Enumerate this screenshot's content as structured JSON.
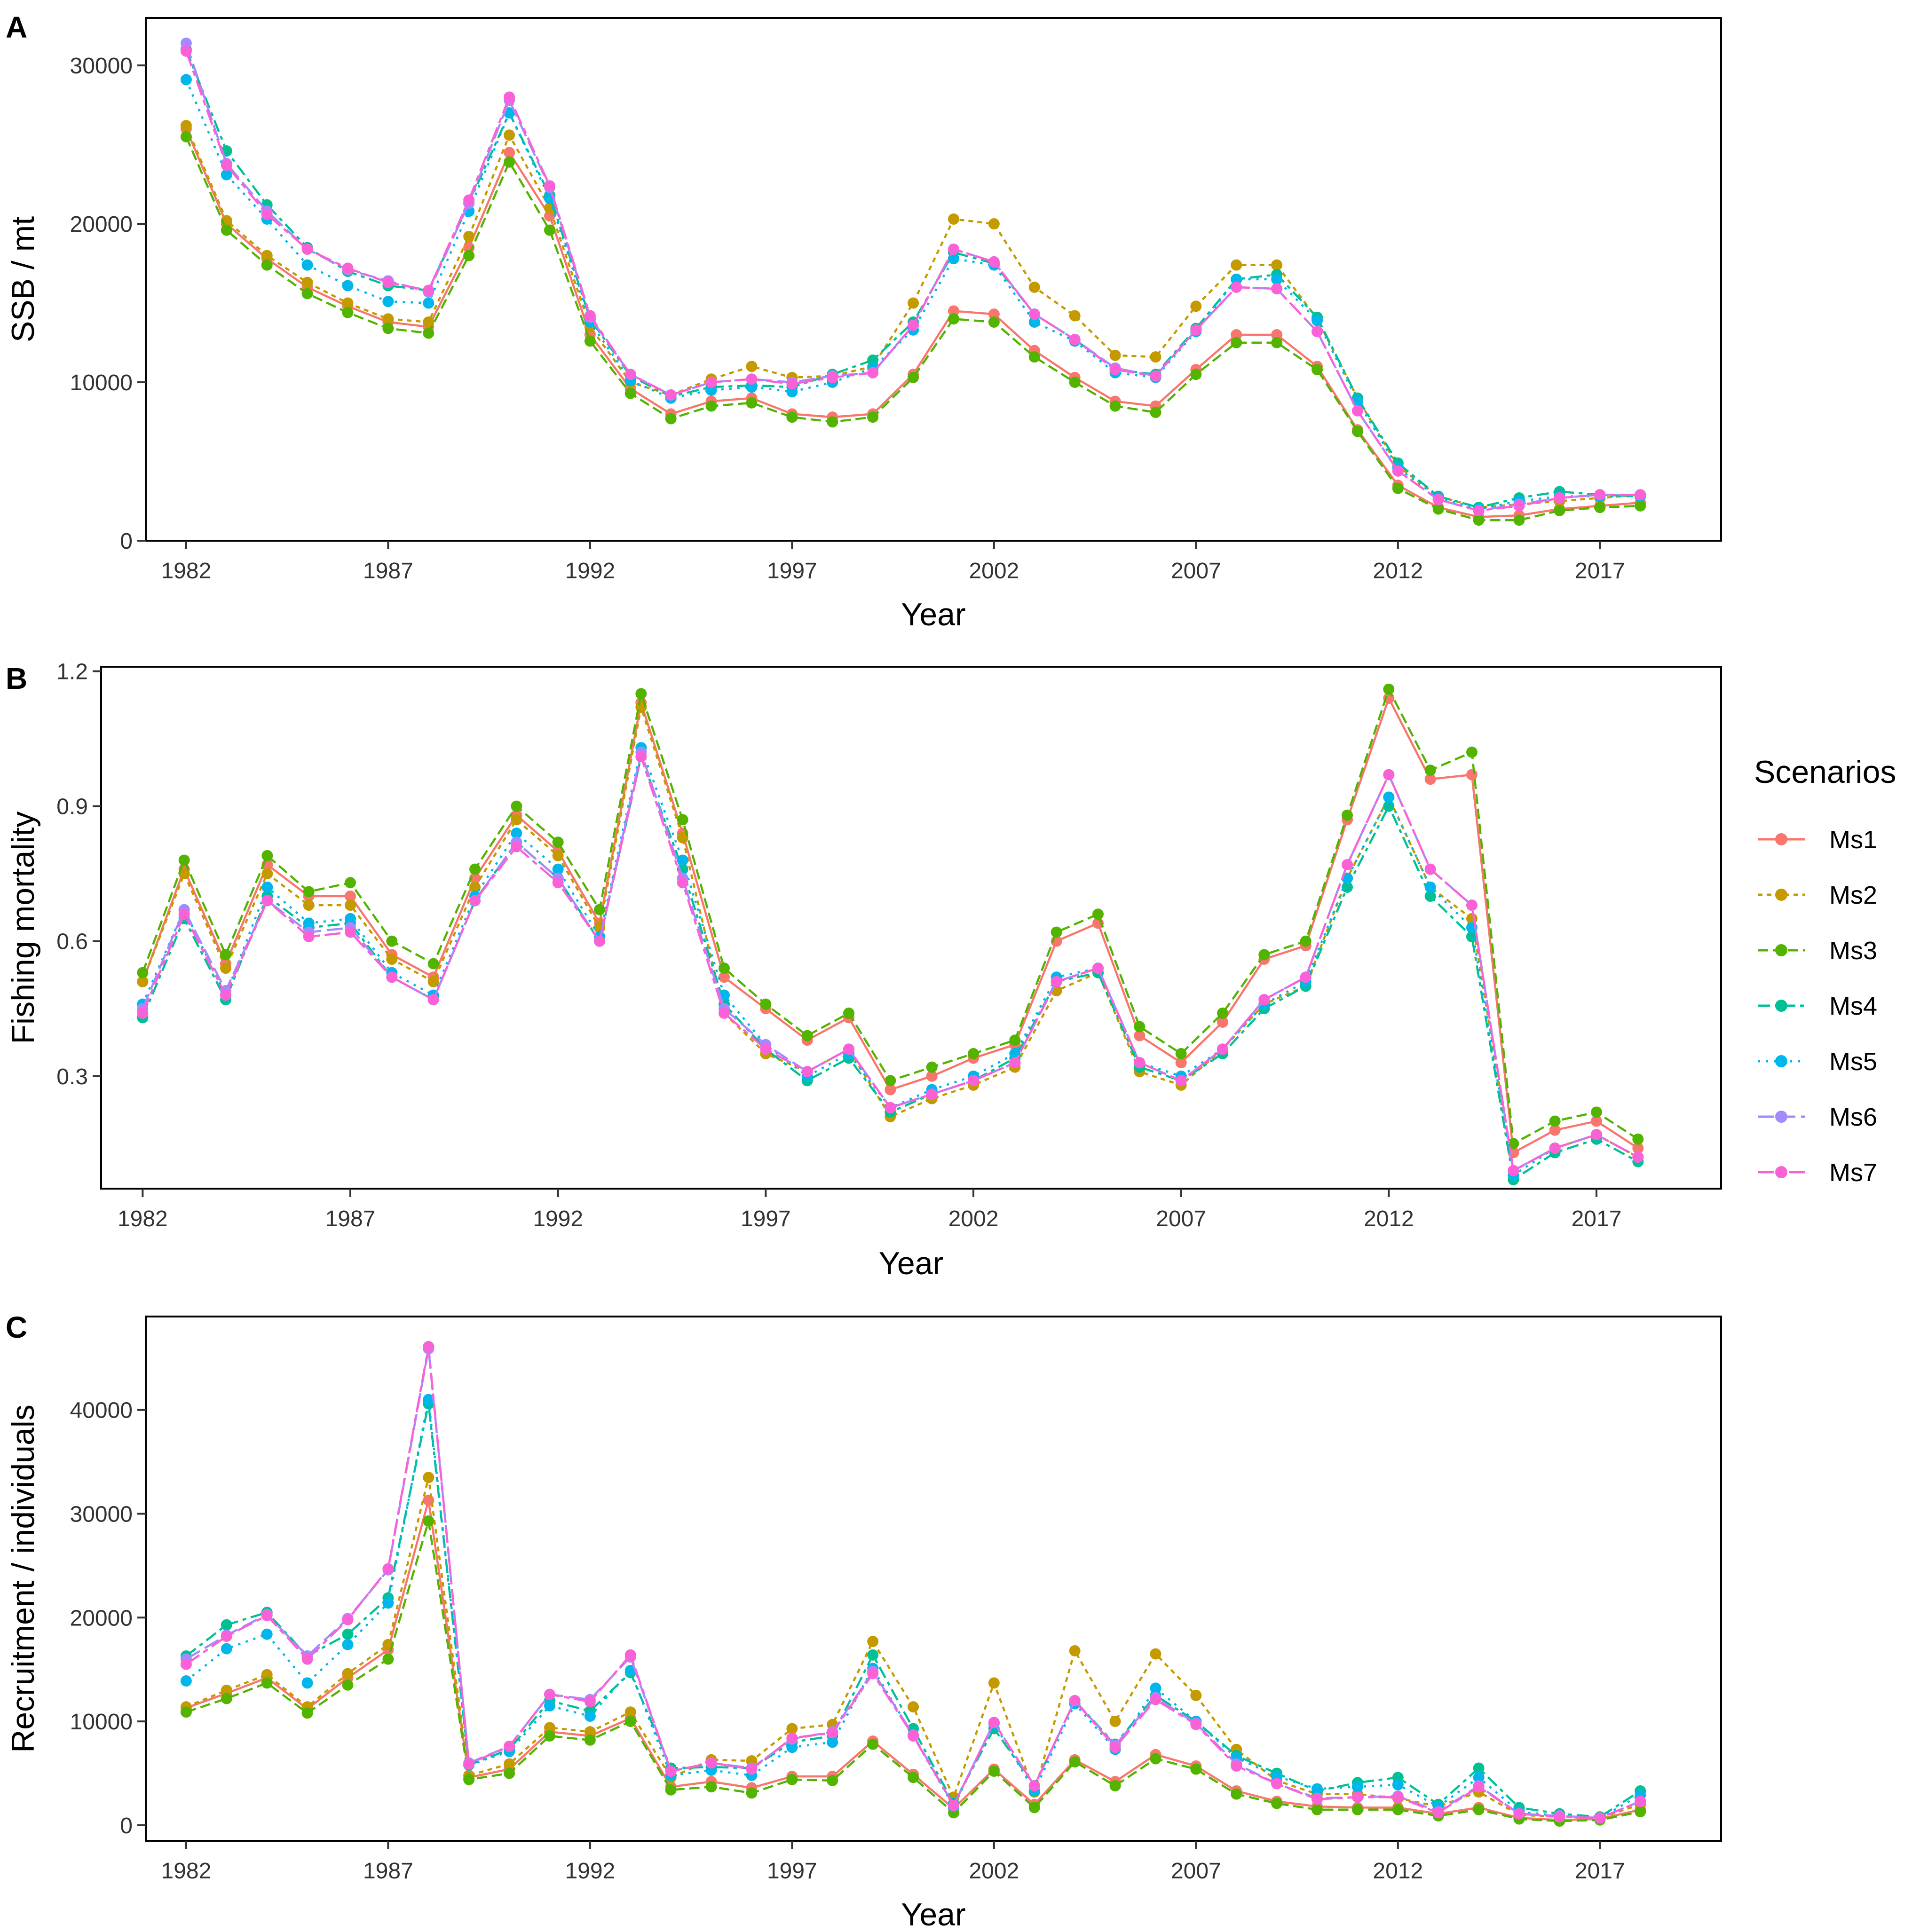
{
  "colors": {
    "Ms1": "#F8766D",
    "Ms2": "#C49A00",
    "Ms3": "#53B400",
    "Ms4": "#00C094",
    "Ms5": "#00B6EB",
    "Ms6": "#A58AFF",
    "Ms7": "#FB61D7"
  },
  "legend": {
    "title": "Scenarios",
    "items": [
      "Ms1",
      "Ms2",
      "Ms3",
      "Ms4",
      "Ms5",
      "Ms6",
      "Ms7"
    ]
  },
  "chart_data": [
    {
      "type": "line",
      "panel": "A",
      "xlabel": "Year",
      "ylabel": "SSB / mt",
      "xlim": [
        1981,
        2020
      ],
      "ylim": [
        0,
        33000
      ],
      "xticks": [
        1982,
        1987,
        1992,
        1997,
        2002,
        2007,
        2012,
        2017
      ],
      "yticks": [
        0,
        10000,
        20000,
        30000
      ],
      "x": [
        1982,
        1983,
        1984,
        1985,
        1986,
        1987,
        1988,
        1989,
        1990,
        1991,
        1992,
        1993,
        1994,
        1995,
        1996,
        1997,
        1998,
        1999,
        2000,
        2001,
        2002,
        2003,
        2004,
        2005,
        2006,
        2007,
        2008,
        2009,
        2010,
        2011,
        2012,
        2013,
        2014,
        2015,
        2016,
        2017,
        2018
      ],
      "series": [
        {
          "name": "Ms1",
          "values": [
            26000,
            20000,
            17800,
            16000,
            14800,
            13800,
            13500,
            18500,
            24500,
            20500,
            13000,
            9600,
            8000,
            8800,
            9000,
            8000,
            7800,
            8000,
            10500,
            14500,
            14300,
            12000,
            10300,
            8800,
            8500,
            10800,
            13000,
            13000,
            11000,
            7000,
            3500,
            2100,
            1500,
            1600,
            2000,
            2200,
            2400
          ]
        },
        {
          "name": "Ms2",
          "values": [
            26200,
            20200,
            18000,
            16300,
            15000,
            14000,
            13800,
            19200,
            25600,
            21000,
            13500,
            10000,
            9200,
            10200,
            11000,
            10300,
            10400,
            11000,
            15000,
            20300,
            20000,
            16000,
            14200,
            11700,
            11600,
            14800,
            17400,
            17400,
            14000,
            9000,
            4700,
            2800,
            2100,
            2300,
            2500,
            2700,
            2900
          ]
        },
        {
          "name": "Ms3",
          "values": [
            25500,
            19600,
            17400,
            15600,
            14400,
            13400,
            13100,
            18000,
            23900,
            19600,
            12600,
            9300,
            7700,
            8500,
            8700,
            7800,
            7500,
            7800,
            10300,
            14000,
            13800,
            11600,
            10000,
            8500,
            8100,
            10500,
            12500,
            12500,
            10800,
            6900,
            3300,
            2000,
            1300,
            1300,
            1900,
            2100,
            2200
          ]
        },
        {
          "name": "Ms4",
          "values": [
            31000,
            24600,
            21200,
            18500,
            17000,
            16100,
            15800,
            21300,
            27000,
            21800,
            14000,
            10400,
            9100,
            9700,
            9800,
            9700,
            10500,
            11400,
            13800,
            18200,
            17500,
            14300,
            12700,
            10800,
            10500,
            13400,
            16500,
            16800,
            14100,
            9000,
            4900,
            2800,
            2100,
            2700,
            3100,
            2900,
            2800
          ]
        },
        {
          "name": "Ms5",
          "values": [
            29100,
            23100,
            20300,
            17400,
            16100,
            15100,
            15000,
            20800,
            27000,
            21600,
            13800,
            10100,
            9000,
            9500,
            9700,
            9400,
            10000,
            10900,
            13300,
            17800,
            17400,
            13800,
            12600,
            10600,
            10300,
            13200,
            16500,
            16500,
            13900,
            8800,
            4600,
            2700,
            2000,
            2500,
            2800,
            2800,
            2800
          ]
        },
        {
          "name": "Ms6",
          "values": [
            31400,
            23800,
            20800,
            18400,
            17100,
            16400,
            15700,
            21300,
            27800,
            22300,
            14100,
            10500,
            9200,
            10000,
            10200,
            10000,
            10400,
            10600,
            13600,
            18400,
            17600,
            14300,
            12700,
            10900,
            10400,
            13300,
            16000,
            15900,
            13200,
            8200,
            4400,
            2600,
            1900,
            2300,
            2700,
            2900,
            2900
          ]
        },
        {
          "name": "Ms7",
          "values": [
            30900,
            23700,
            20600,
            18400,
            17200,
            16300,
            15800,
            21500,
            28000,
            22400,
            14200,
            10500,
            9200,
            10000,
            10200,
            9900,
            10300,
            10600,
            13600,
            18400,
            17600,
            14300,
            12700,
            10800,
            10400,
            13300,
            16000,
            15900,
            13200,
            8200,
            4400,
            2600,
            1900,
            2200,
            2700,
            2900,
            2900
          ]
        }
      ]
    },
    {
      "type": "line",
      "panel": "B",
      "xlabel": "Year",
      "ylabel": "Fishing mortality",
      "xlim": [
        1981,
        2020
      ],
      "ylim": [
        0.05,
        1.21
      ],
      "xticks": [
        1982,
        1987,
        1992,
        1997,
        2002,
        2007,
        2012,
        2017
      ],
      "yticks": [
        0.3,
        0.6,
        0.9,
        1.2
      ],
      "ytick_labels": [
        "0.3",
        "0.6",
        "0.9",
        "1.2"
      ],
      "x": [
        1982,
        1983,
        1984,
        1985,
        1986,
        1987,
        1988,
        1989,
        1990,
        1991,
        1992,
        1993,
        1994,
        1995,
        1996,
        1997,
        1998,
        1999,
        2000,
        2001,
        2002,
        2003,
        2004,
        2005,
        2006,
        2007,
        2008,
        2009,
        2010,
        2011,
        2012,
        2013,
        2014,
        2015,
        2016,
        2017,
        2018
      ],
      "series": [
        {
          "name": "Ms1",
          "values": [
            0.51,
            0.76,
            0.55,
            0.77,
            0.7,
            0.7,
            0.57,
            0.52,
            0.74,
            0.88,
            0.8,
            0.64,
            1.13,
            0.84,
            0.52,
            0.45,
            0.38,
            0.43,
            0.27,
            0.3,
            0.34,
            0.37,
            0.6,
            0.64,
            0.39,
            0.33,
            0.42,
            0.56,
            0.59,
            0.87,
            1.14,
            0.96,
            0.97,
            0.13,
            0.18,
            0.2,
            0.14
          ]
        },
        {
          "name": "Ms2",
          "values": [
            0.51,
            0.75,
            0.54,
            0.75,
            0.68,
            0.68,
            0.56,
            0.51,
            0.72,
            0.87,
            0.79,
            0.63,
            1.12,
            0.83,
            0.44,
            0.35,
            0.31,
            0.36,
            0.21,
            0.25,
            0.28,
            0.32,
            0.49,
            0.53,
            0.31,
            0.28,
            0.36,
            0.46,
            0.5,
            0.74,
            0.92,
            0.72,
            0.65,
            0.09,
            0.14,
            0.17,
            0.12
          ]
        },
        {
          "name": "Ms3",
          "values": [
            0.53,
            0.78,
            0.57,
            0.79,
            0.71,
            0.73,
            0.6,
            0.55,
            0.76,
            0.9,
            0.82,
            0.67,
            1.15,
            0.87,
            0.54,
            0.46,
            0.39,
            0.44,
            0.29,
            0.32,
            0.35,
            0.38,
            0.62,
            0.66,
            0.41,
            0.35,
            0.44,
            0.57,
            0.6,
            0.88,
            1.16,
            0.98,
            1.02,
            0.15,
            0.2,
            0.22,
            0.16
          ]
        },
        {
          "name": "Ms4",
          "values": [
            0.43,
            0.65,
            0.47,
            0.7,
            0.63,
            0.64,
            0.52,
            0.47,
            0.69,
            0.82,
            0.74,
            0.6,
            1.01,
            0.76,
            0.46,
            0.36,
            0.29,
            0.34,
            0.22,
            0.26,
            0.29,
            0.34,
            0.51,
            0.53,
            0.32,
            0.29,
            0.35,
            0.45,
            0.5,
            0.72,
            0.9,
            0.7,
            0.61,
            0.07,
            0.13,
            0.16,
            0.11
          ]
        },
        {
          "name": "Ms5",
          "values": [
            0.46,
            0.67,
            0.48,
            0.72,
            0.64,
            0.65,
            0.53,
            0.48,
            0.7,
            0.84,
            0.76,
            0.61,
            1.03,
            0.78,
            0.48,
            0.37,
            0.3,
            0.35,
            0.23,
            0.27,
            0.3,
            0.35,
            0.52,
            0.54,
            0.33,
            0.3,
            0.36,
            0.46,
            0.51,
            0.74,
            0.92,
            0.72,
            0.63,
            0.08,
            0.14,
            0.17,
            0.12
          ]
        },
        {
          "name": "Ms6",
          "values": [
            0.45,
            0.67,
            0.49,
            0.69,
            0.62,
            0.63,
            0.52,
            0.47,
            0.69,
            0.82,
            0.74,
            0.6,
            1.02,
            0.74,
            0.45,
            0.37,
            0.31,
            0.36,
            0.23,
            0.26,
            0.29,
            0.33,
            0.51,
            0.54,
            0.33,
            0.29,
            0.36,
            0.47,
            0.52,
            0.77,
            0.97,
            0.76,
            0.68,
            0.09,
            0.14,
            0.17,
            0.12
          ]
        },
        {
          "name": "Ms7",
          "values": [
            0.44,
            0.66,
            0.48,
            0.69,
            0.61,
            0.62,
            0.52,
            0.47,
            0.69,
            0.81,
            0.73,
            0.6,
            1.01,
            0.73,
            0.44,
            0.36,
            0.31,
            0.36,
            0.23,
            0.26,
            0.29,
            0.33,
            0.51,
            0.54,
            0.33,
            0.29,
            0.36,
            0.47,
            0.52,
            0.77,
            0.97,
            0.76,
            0.68,
            0.09,
            0.14,
            0.17,
            0.12
          ]
        }
      ]
    },
    {
      "type": "line",
      "panel": "C",
      "xlabel": "Year",
      "ylabel": "Recruitment / individuals",
      "xlim": [
        1981,
        2020
      ],
      "ylim": [
        -1500,
        49000
      ],
      "xticks": [
        1982,
        1987,
        1992,
        1997,
        2002,
        2007,
        2012,
        2017
      ],
      "yticks": [
        0,
        10000,
        20000,
        30000,
        40000
      ],
      "x": [
        1982,
        1983,
        1984,
        1985,
        1986,
        1987,
        1988,
        1989,
        1990,
        1991,
        1992,
        1993,
        1994,
        1995,
        1996,
        1997,
        1998,
        1999,
        2000,
        2001,
        2002,
        2003,
        2004,
        2005,
        2006,
        2007,
        2008,
        2009,
        2010,
        2011,
        2012,
        2013,
        2014,
        2015,
        2016,
        2017,
        2018
      ],
      "series": [
        {
          "name": "Ms1",
          "values": [
            11300,
            12700,
            14200,
            11200,
            14200,
            16900,
            31300,
            4600,
            5400,
            9000,
            8600,
            10300,
            3700,
            4200,
            3600,
            4700,
            4700,
            8100,
            4900,
            1600,
            5400,
            2000,
            6300,
            4200,
            6800,
            5700,
            3300,
            2300,
            1800,
            1700,
            1700,
            1100,
            1700,
            700,
            500,
            600,
            1500
          ]
        },
        {
          "name": "Ms2",
          "values": [
            11400,
            13000,
            14500,
            11400,
            14600,
            17400,
            33500,
            4800,
            5900,
            9400,
            9000,
            10900,
            4600,
            6300,
            6200,
            9300,
            9700,
            17700,
            11400,
            2700,
            13700,
            3200,
            16800,
            10000,
            16500,
            12500,
            7300,
            4300,
            3000,
            3000,
            2600,
            1800,
            3200,
            1000,
            800,
            700,
            2000
          ]
        },
        {
          "name": "Ms3",
          "values": [
            10900,
            12200,
            13700,
            10800,
            13500,
            16000,
            29300,
            4400,
            5000,
            8600,
            8200,
            10000,
            3400,
            3700,
            3100,
            4400,
            4300,
            7800,
            4600,
            1200,
            5200,
            1700,
            6100,
            3800,
            6400,
            5400,
            3000,
            2100,
            1500,
            1500,
            1500,
            900,
            1500,
            600,
            400,
            500,
            1300
          ]
        },
        {
          "name": "Ms4",
          "values": [
            16300,
            19300,
            20500,
            16300,
            18400,
            21900,
            40600,
            5800,
            7300,
            12000,
            11000,
            14700,
            5500,
            5600,
            5500,
            8000,
            8600,
            16400,
            9300,
            2100,
            9300,
            3800,
            12000,
            7800,
            12500,
            10000,
            6700,
            5000,
            3300,
            4100,
            4600,
            2000,
            5500,
            1700,
            1100,
            800,
            3300
          ]
        },
        {
          "name": "Ms5",
          "values": [
            13900,
            17000,
            18400,
            13700,
            17400,
            21400,
            41000,
            5800,
            7100,
            11500,
            10500,
            14900,
            4800,
            5300,
            4800,
            7500,
            8000,
            15100,
            8600,
            1800,
            9800,
            3300,
            11700,
            7300,
            13200,
            10000,
            6500,
            4700,
            3500,
            3700,
            3900,
            1800,
            4600,
            1300,
            900,
            700,
            2900
          ]
        },
        {
          "name": "Ms6",
          "values": [
            16000,
            18300,
            20300,
            16300,
            19900,
            24600,
            45900,
            6000,
            7600,
            12600,
            12100,
            16200,
            5200,
            6000,
            5500,
            8300,
            9000,
            14800,
            8700,
            1900,
            9900,
            3800,
            12000,
            7700,
            12300,
            9800,
            5900,
            4000,
            2600,
            2700,
            2800,
            1300,
            3800,
            1100,
            900,
            700,
            2300
          ]
        },
        {
          "name": "Ms7",
          "values": [
            15500,
            18200,
            20200,
            16000,
            19800,
            24700,
            46100,
            5900,
            7600,
            12600,
            11900,
            16400,
            5200,
            6000,
            5400,
            8400,
            8900,
            14600,
            8600,
            1900,
            9900,
            3800,
            12000,
            7500,
            12100,
            9700,
            5700,
            4000,
            2500,
            2700,
            2700,
            1200,
            3700,
            1100,
            800,
            700,
            2300
          ]
        }
      ]
    }
  ]
}
